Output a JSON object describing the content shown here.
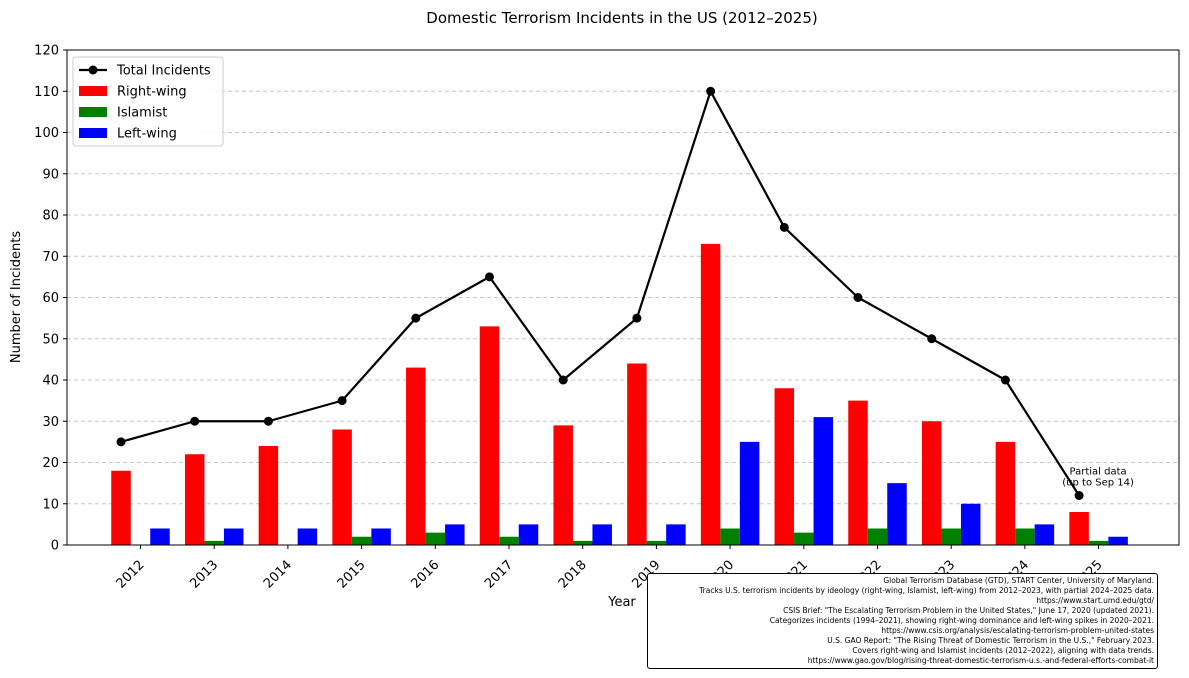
{
  "chart_data": {
    "type": "bar",
    "title": "Domestic Terrorism Incidents in the US (2012–2025)",
    "xlabel": "Year",
    "ylabel": "Number of Incidents",
    "categories": [
      "2012",
      "2013",
      "2014",
      "2015",
      "2016",
      "2017",
      "2018",
      "2019",
      "2020",
      "2021",
      "2022",
      "2023",
      "2024",
      "2025"
    ],
    "ylim": [
      0,
      120
    ],
    "yticks": [
      0,
      10,
      20,
      30,
      40,
      50,
      60,
      70,
      80,
      90,
      100,
      110,
      120
    ],
    "grid": "y-dashed",
    "legend_position": "top-left",
    "series": [
      {
        "name": "Total Incidents",
        "kind": "line",
        "color": "#000000",
        "values": [
          25,
          30,
          30,
          35,
          55,
          65,
          40,
          55,
          110,
          77,
          60,
          50,
          40,
          12
        ]
      },
      {
        "name": "Right-wing",
        "kind": "bar",
        "color": "#ff0000",
        "values": [
          18,
          22,
          24,
          28,
          43,
          53,
          29,
          44,
          73,
          38,
          35,
          30,
          25,
          8
        ]
      },
      {
        "name": "Islamist",
        "kind": "bar",
        "color": "#008000",
        "values": [
          0,
          1,
          0,
          2,
          3,
          2,
          1,
          1,
          4,
          3,
          4,
          4,
          4,
          1
        ]
      },
      {
        "name": "Left-wing",
        "kind": "bar",
        "color": "#0000ff",
        "values": [
          4,
          4,
          4,
          4,
          5,
          5,
          5,
          5,
          25,
          31,
          15,
          10,
          5,
          2
        ]
      }
    ],
    "annotation": {
      "year": "2025",
      "lines": [
        "Partial data",
        "(up to Sep 14)"
      ]
    }
  },
  "sources": [
    "Global Terrorism Database (GTD), START Center, University of Maryland.",
    "Tracks U.S. terrorism incidents by ideology (right-wing, Islamist, left-wing) from 2012–2023, with partial 2024–2025 data.",
    "https://www.start.umd.edu/gtd/",
    "CSIS Brief: \"The Escalating Terrorism Problem in the United States,\" June 17, 2020 (updated 2021).",
    "Categorizes incidents (1994–2021), showing right-wing dominance and left-wing spikes in 2020–2021.",
    "https://www.csis.org/analysis/escalating-terrorism-problem-united-states",
    "U.S. GAO Report: \"The Rising Threat of Domestic Terrorism in the U.S.,\" February 2023.",
    "Covers right-wing and Islamist incidents (2012–2022), aligning with data trends.",
    "https://www.gao.gov/blog/rising-threat-domestic-terrorism-u.s.-and-federal-efforts-combat-it"
  ]
}
